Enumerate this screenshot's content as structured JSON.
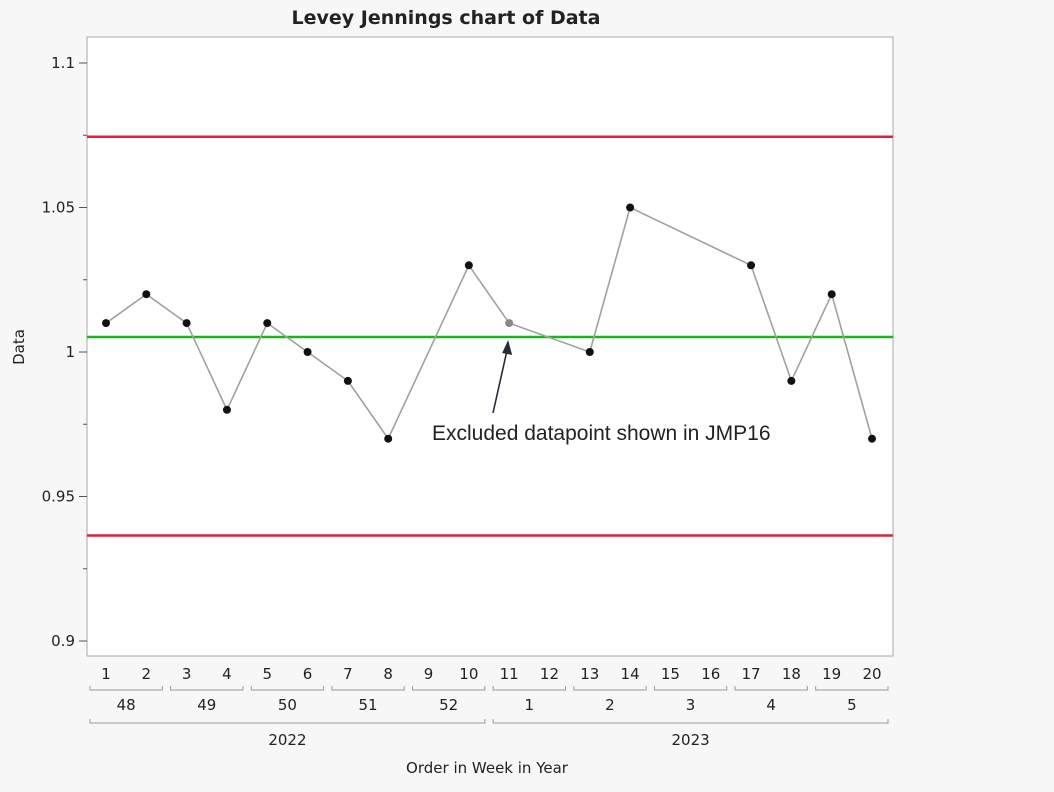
{
  "chart_data": {
    "type": "line",
    "title": "Levey Jennings chart of Data",
    "ylabel": "Data",
    "xlabel": "Order in Week in Year",
    "ylim": [
      0.9,
      1.1
    ],
    "yticks": [
      0.9,
      0.95,
      1,
      1.05,
      1.1
    ],
    "ytick_labels": [
      "0.9",
      "0.95",
      "1",
      "1.05",
      "1.1"
    ],
    "order_labels": [
      "1",
      "2",
      "3",
      "4",
      "5",
      "6",
      "7",
      "8",
      "9",
      "10",
      "11",
      "12",
      "13",
      "14",
      "15",
      "16",
      "17",
      "18",
      "19",
      "20"
    ],
    "week_groups": [
      {
        "label": "48",
        "orders": [
          "1",
          "2"
        ]
      },
      {
        "label": "49",
        "orders": [
          "3",
          "4"
        ]
      },
      {
        "label": "50",
        "orders": [
          "5",
          "6"
        ]
      },
      {
        "label": "51",
        "orders": [
          "7",
          "8"
        ]
      },
      {
        "label": "52",
        "orders": [
          "9",
          "10"
        ]
      },
      {
        "label": "1",
        "orders": [
          "11",
          "12"
        ]
      },
      {
        "label": "2",
        "orders": [
          "13",
          "14"
        ]
      },
      {
        "label": "3",
        "orders": [
          "15",
          "16"
        ]
      },
      {
        "label": "4",
        "orders": [
          "17",
          "18"
        ]
      },
      {
        "label": "5",
        "orders": [
          "19",
          "20"
        ]
      }
    ],
    "year_groups": [
      {
        "label": "2022",
        "orders_from": "1",
        "orders_to": "10"
      },
      {
        "label": "2023",
        "orders_from": "11",
        "orders_to": "20"
      }
    ],
    "series": [
      {
        "points": [
          {
            "x": "1",
            "y": 1.01
          },
          {
            "x": "2",
            "y": 1.02
          },
          {
            "x": "3",
            "y": 1.01
          },
          {
            "x": "4",
            "y": 0.98
          },
          {
            "x": "5",
            "y": 1.01
          },
          {
            "x": "6",
            "y": 1.0
          },
          {
            "x": "7",
            "y": 0.99
          },
          {
            "x": "8",
            "y": 0.97
          },
          {
            "x": "10",
            "y": 1.03
          },
          {
            "x": "11",
            "y": 1.01,
            "excluded": true
          },
          {
            "x": "13",
            "y": 1.0
          },
          {
            "x": "14",
            "y": 1.05
          },
          {
            "x": "17",
            "y": 1.03
          },
          {
            "x": "18",
            "y": 0.99
          },
          {
            "x": "19",
            "y": 1.02
          },
          {
            "x": "20",
            "y": 0.97
          }
        ]
      }
    ],
    "reference_lines": [
      {
        "y": 1.0745,
        "color": "#e0203a"
      },
      {
        "y": 1.0052,
        "color": "#1ab51a"
      },
      {
        "y": 0.9365,
        "color": "#e0203a"
      }
    ],
    "annotation": {
      "text": "Excluded datapoint shown in JMP16",
      "points_to_x": "11"
    },
    "grid": false,
    "legend": "none",
    "colors": {
      "point": "#111111",
      "excluded_point": "#8a8a8a",
      "line": "#a0a0a0",
      "arrow": "#2a2a3a"
    }
  }
}
